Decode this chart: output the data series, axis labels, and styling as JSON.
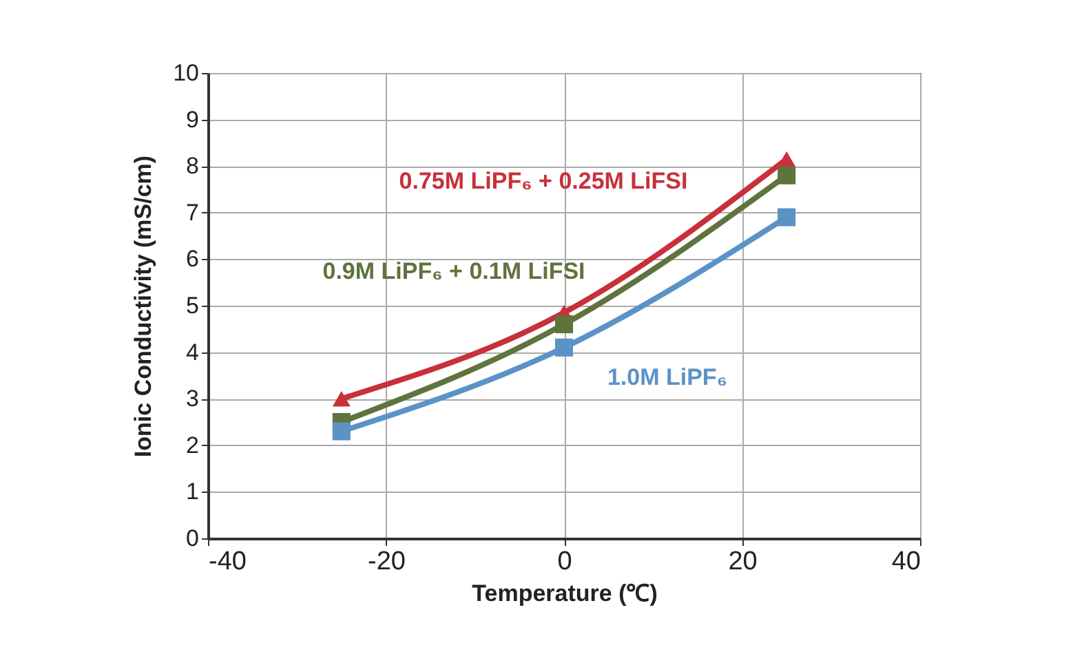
{
  "chart_data": {
    "type": "line",
    "xlabel": "Temperature (℃)",
    "ylabel": "Ionic Conductivity (mS/cm)",
    "x": [
      -25,
      0,
      25
    ],
    "series": [
      {
        "name": "0.75M LiPF₆ + 0.25M LiFSI",
        "color": "#c8303a",
        "marker": "triangle",
        "values": [
          3.0,
          4.85,
          8.15
        ]
      },
      {
        "name": "0.9M LiPF₆ + 0.1M LiFSI",
        "color": "#5f733c",
        "marker": "square",
        "values": [
          2.5,
          4.6,
          7.8
        ]
      },
      {
        "name": "1.0M LiPF₆",
        "color": "#5b93c7",
        "marker": "square",
        "values": [
          2.3,
          4.1,
          6.9
        ]
      }
    ],
    "xlim": [
      -40,
      40
    ],
    "xticks": [
      -40,
      -20,
      0,
      20,
      40
    ],
    "ylim": [
      0,
      10
    ],
    "yticks": [
      0,
      1,
      2,
      3,
      4,
      5,
      6,
      7,
      8,
      9,
      10
    ],
    "grid": true,
    "line_style": "solid"
  }
}
